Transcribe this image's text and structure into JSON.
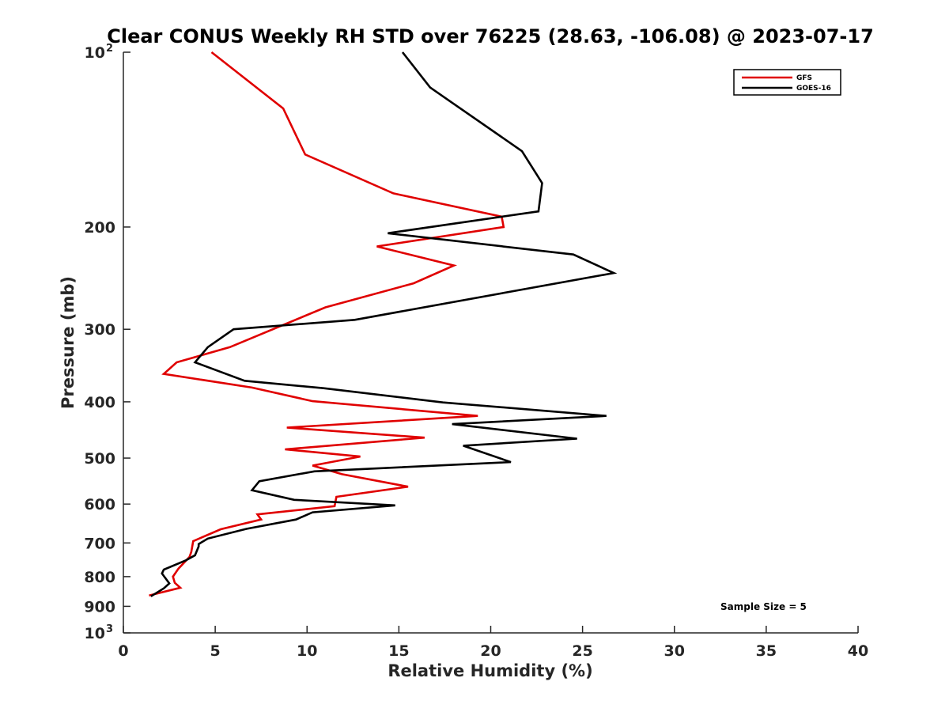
{
  "chart_data": {
    "type": "line",
    "title": "Clear CONUS Weekly RH STD over 76225 (28.63, -106.08) @ 2023-07-17",
    "xlabel": "Relative Humidity (%)",
    "ylabel": "Pressure (mb)",
    "xlim": [
      0,
      40
    ],
    "ylim": [
      100,
      1000
    ],
    "y_scale": "log",
    "y_reversed": true,
    "x_ticks": [
      "0",
      "5",
      "10",
      "15",
      "20",
      "25",
      "30",
      "35",
      "40"
    ],
    "y_ticks": [
      {
        "value": 100,
        "base": "10",
        "exp": "2"
      },
      {
        "value": 200,
        "label": "200"
      },
      {
        "value": 300,
        "label": "300"
      },
      {
        "value": 400,
        "label": "400"
      },
      {
        "value": 500,
        "label": "500"
      },
      {
        "value": 600,
        "label": "600"
      },
      {
        "value": 700,
        "label": "700"
      },
      {
        "value": 800,
        "label": "800"
      },
      {
        "value": 900,
        "label": "900"
      },
      {
        "value": 1000,
        "base": "10",
        "exp": "3"
      }
    ],
    "grid": false,
    "legend_position": "top-right",
    "annotation": "Sample Size = 5",
    "series": [
      {
        "name": "GFS",
        "color": "#e00000",
        "points": [
          [
            4.8,
            100
          ],
          [
            8.7,
            125
          ],
          [
            9.9,
            150
          ],
          [
            14.7,
            175
          ],
          [
            20.6,
            192
          ],
          [
            20.7,
            200
          ],
          [
            13.8,
            216
          ],
          [
            18.0,
            233
          ],
          [
            15.8,
            250
          ],
          [
            11.0,
            275
          ],
          [
            5.8,
            322
          ],
          [
            2.9,
            342
          ],
          [
            2.2,
            358
          ],
          [
            7.0,
            378
          ],
          [
            10.3,
            399
          ],
          [
            19.3,
            423
          ],
          [
            8.9,
            443
          ],
          [
            16.4,
            461
          ],
          [
            8.8,
            483
          ],
          [
            12.9,
            497
          ],
          [
            10.3,
            515
          ],
          [
            11.9,
            533
          ],
          [
            15.5,
            560
          ],
          [
            11.6,
            583
          ],
          [
            11.5,
            605
          ],
          [
            7.3,
            625
          ],
          [
            7.5,
            638
          ],
          [
            5.3,
            663
          ],
          [
            3.8,
            695
          ],
          [
            3.7,
            725
          ],
          [
            3.6,
            740
          ],
          [
            3.0,
            775
          ],
          [
            2.7,
            800
          ],
          [
            2.8,
            820
          ],
          [
            3.1,
            836
          ],
          [
            1.4,
            862
          ]
        ]
      },
      {
        "name": "GOES-16",
        "color": "#000000",
        "points": [
          [
            15.2,
            100
          ],
          [
            16.7,
            115
          ],
          [
            21.7,
            148
          ],
          [
            22.8,
            168
          ],
          [
            22.6,
            188
          ],
          [
            14.4,
            205
          ],
          [
            24.5,
            223
          ],
          [
            26.7,
            240
          ],
          [
            12.6,
            289
          ],
          [
            6.0,
            300
          ],
          [
            4.6,
            322
          ],
          [
            3.9,
            342
          ],
          [
            6.6,
            368
          ],
          [
            10.9,
            379
          ],
          [
            17.4,
            401
          ],
          [
            26.3,
            423
          ],
          [
            17.9,
            437
          ],
          [
            24.7,
            463
          ],
          [
            18.5,
            476
          ],
          [
            21.1,
            508
          ],
          [
            10.4,
            527
          ],
          [
            7.4,
            548
          ],
          [
            7.0,
            568
          ],
          [
            9.3,
            590
          ],
          [
            14.8,
            603
          ],
          [
            10.3,
            620
          ],
          [
            9.4,
            638
          ],
          [
            6.7,
            662
          ],
          [
            4.6,
            688
          ],
          [
            4.1,
            703
          ],
          [
            4.1,
            710
          ],
          [
            3.9,
            735
          ],
          [
            3.4,
            750
          ],
          [
            2.2,
            778
          ],
          [
            2.1,
            790
          ],
          [
            2.5,
            822
          ],
          [
            2.2,
            838
          ],
          [
            1.5,
            865
          ]
        ]
      }
    ]
  }
}
